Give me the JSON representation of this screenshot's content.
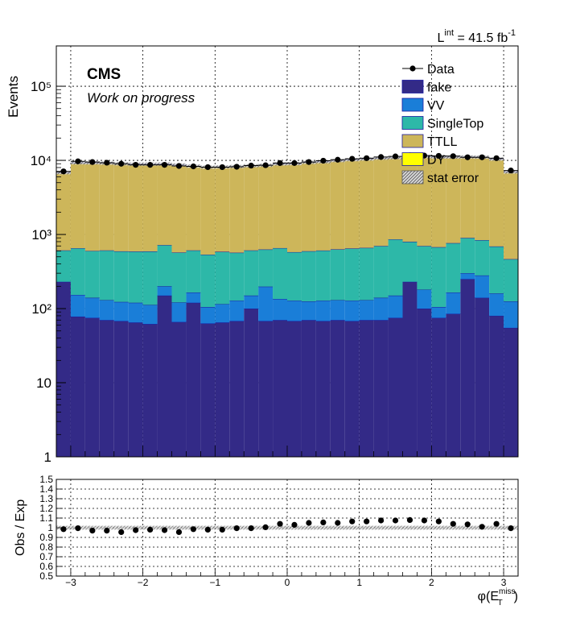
{
  "lumi": {
    "prefix": "L",
    "sup1": "int",
    "mid": " = 41.5 fb",
    "sup2": "-1"
  },
  "cms_label": "CMS",
  "cms_sublabel": "Work on progress",
  "top_ylabel": "Events",
  "bottom_ylabel": "Obs / Exp",
  "xlabel": {
    "prefix": "φ(E",
    "sup": "miss",
    "sub": "T",
    "suffix": ")"
  },
  "legend": [
    {
      "label": "Data",
      "kind": "marker"
    },
    {
      "label": "fake",
      "color": "#332a87"
    },
    {
      "label": "VV",
      "color": "#1a7ed8"
    },
    {
      "label": "SingleTop",
      "color": "#2db8a8"
    },
    {
      "label": "TTLL",
      "color": "#cdb65a"
    },
    {
      "label": "DY",
      "color": "#ffff00"
    },
    {
      "label": "stat error",
      "kind": "hatch"
    }
  ],
  "chart_data": [
    {
      "type": "bar",
      "stacked": true,
      "log_y": true,
      "xlim": [
        -3.2,
        3.2
      ],
      "ylim": [
        1,
        350000
      ],
      "x_ticks": [
        -3,
        -2,
        -1,
        0,
        1,
        2,
        3
      ],
      "x_tick_labels": [
        "−3",
        "−2",
        "−1",
        "0",
        "1",
        "2",
        "3"
      ],
      "y_ticks": [
        1,
        10,
        100,
        1000,
        10000,
        100000
      ],
      "y_tick_labels": [
        "1",
        "10",
        "10²",
        "10³",
        "10⁴",
        "10⁵"
      ],
      "grid": true,
      "bin_edges": [
        -3.2,
        -3.0,
        -2.8,
        -2.6,
        -2.4,
        -2.2,
        -2.0,
        -1.8,
        -1.6,
        -1.4,
        -1.2,
        -1.0,
        -0.8,
        -0.6,
        -0.4,
        -0.2,
        0.0,
        0.2,
        0.4,
        0.6,
        0.8,
        1.0,
        1.2,
        1.4,
        1.6,
        1.8,
        2.0,
        2.2,
        2.4,
        2.6,
        2.8,
        3.0,
        3.2
      ],
      "series": [
        {
          "name": "fake",
          "color": "#332a87",
          "values": [
            230,
            78,
            75,
            70,
            68,
            65,
            62,
            150,
            66,
            120,
            63,
            65,
            68,
            100,
            68,
            70,
            68,
            70,
            68,
            70,
            68,
            70,
            70,
            75,
            230,
            100,
            75,
            85,
            250,
            140,
            80,
            55
          ]
        },
        {
          "name": "VV",
          "color": "#1a7ed8",
          "values": [
            0,
            75,
            65,
            60,
            55,
            55,
            50,
            50,
            55,
            45,
            42,
            50,
            60,
            50,
            130,
            65,
            60,
            55,
            60,
            60,
            60,
            60,
            70,
            75,
            0,
            80,
            30,
            80,
            50,
            140,
            80,
            70
          ]
        },
        {
          "name": "SingleTop",
          "color": "#2db8a8",
          "values": [
            380,
            500,
            460,
            480,
            470,
            470,
            480,
            520,
            450,
            445,
            430,
            470,
            440,
            460,
            430,
            520,
            450,
            470,
            480,
            500,
            520,
            530,
            560,
            710,
            570,
            520,
            570,
            600,
            600,
            560,
            530,
            340
          ]
        },
        {
          "name": "TTLL",
          "color": "#cdb65a",
          "values": [
            6200,
            8600,
            8650,
            8550,
            8400,
            8300,
            8300,
            8200,
            8100,
            7750,
            7550,
            7560,
            7680,
            7850,
            7960,
            8300,
            8450,
            8800,
            8960,
            9300,
            9550,
            9750,
            10000,
            10000,
            10400,
            10500,
            10400,
            10300,
            10200,
            10200,
            9700,
            6500
          ]
        },
        {
          "name": "DY",
          "color": "#ffff00",
          "values": [
            0,
            0,
            0,
            0,
            0,
            0,
            0,
            0,
            0,
            0,
            0,
            0,
            0,
            0,
            0,
            0,
            0,
            0,
            0,
            0,
            0,
            0,
            0,
            0,
            0,
            0,
            0,
            0,
            0,
            0,
            0,
            0
          ]
        },
        {
          "name": "Data",
          "kind": "points",
          "values": [
            7100,
            9700,
            9500,
            9300,
            9000,
            8700,
            8700,
            8700,
            8400,
            8300,
            8100,
            8100,
            8200,
            8500,
            8600,
            9200,
            9200,
            9500,
            9900,
            10200,
            10500,
            10700,
            11100,
            11300,
            11700,
            11600,
            11500,
            11400,
            11000,
            11000,
            10700,
            7300
          ]
        }
      ]
    },
    {
      "type": "scatter",
      "xlim": [
        -3.2,
        3.2
      ],
      "ylim": [
        0.5,
        1.5
      ],
      "grid": true,
      "y_ticks": [
        0.5,
        0.6,
        0.7,
        0.8,
        0.9,
        1.0,
        1.1,
        1.2,
        1.3,
        1.4,
        1.5
      ],
      "y_tick_labels": [
        "0.5",
        "0.6",
        "0.7",
        "0.8",
        "0.9",
        "1",
        "1.1",
        "1.2",
        "1.3",
        "1.4",
        "1.5"
      ],
      "x_ticks": [
        -3,
        -2,
        -1,
        0,
        1,
        2,
        3
      ],
      "x_tick_labels": [
        "−3",
        "−2",
        "−1",
        "0",
        "1",
        "2",
        "3"
      ],
      "x": [
        -3.1,
        -2.9,
        -2.7,
        -2.5,
        -2.3,
        -2.1,
        -1.9,
        -1.7,
        -1.5,
        -1.3,
        -1.1,
        -0.9,
        -0.7,
        -0.5,
        -0.3,
        -0.1,
        0.1,
        0.3,
        0.5,
        0.7,
        0.9,
        1.1,
        1.3,
        1.5,
        1.7,
        1.9,
        2.1,
        2.3,
        2.5,
        2.7,
        2.9,
        3.1
      ],
      "y": [
        0.985,
        0.995,
        0.97,
        0.97,
        0.955,
        0.975,
        0.98,
        0.975,
        0.955,
        0.985,
        0.98,
        0.98,
        0.995,
        0.995,
        1.005,
        1.04,
        1.03,
        1.05,
        1.055,
        1.05,
        1.065,
        1.065,
        1.075,
        1.075,
        1.08,
        1.075,
        1.065,
        1.04,
        1.035,
        1.01,
        1.04,
        0.995
      ]
    }
  ]
}
